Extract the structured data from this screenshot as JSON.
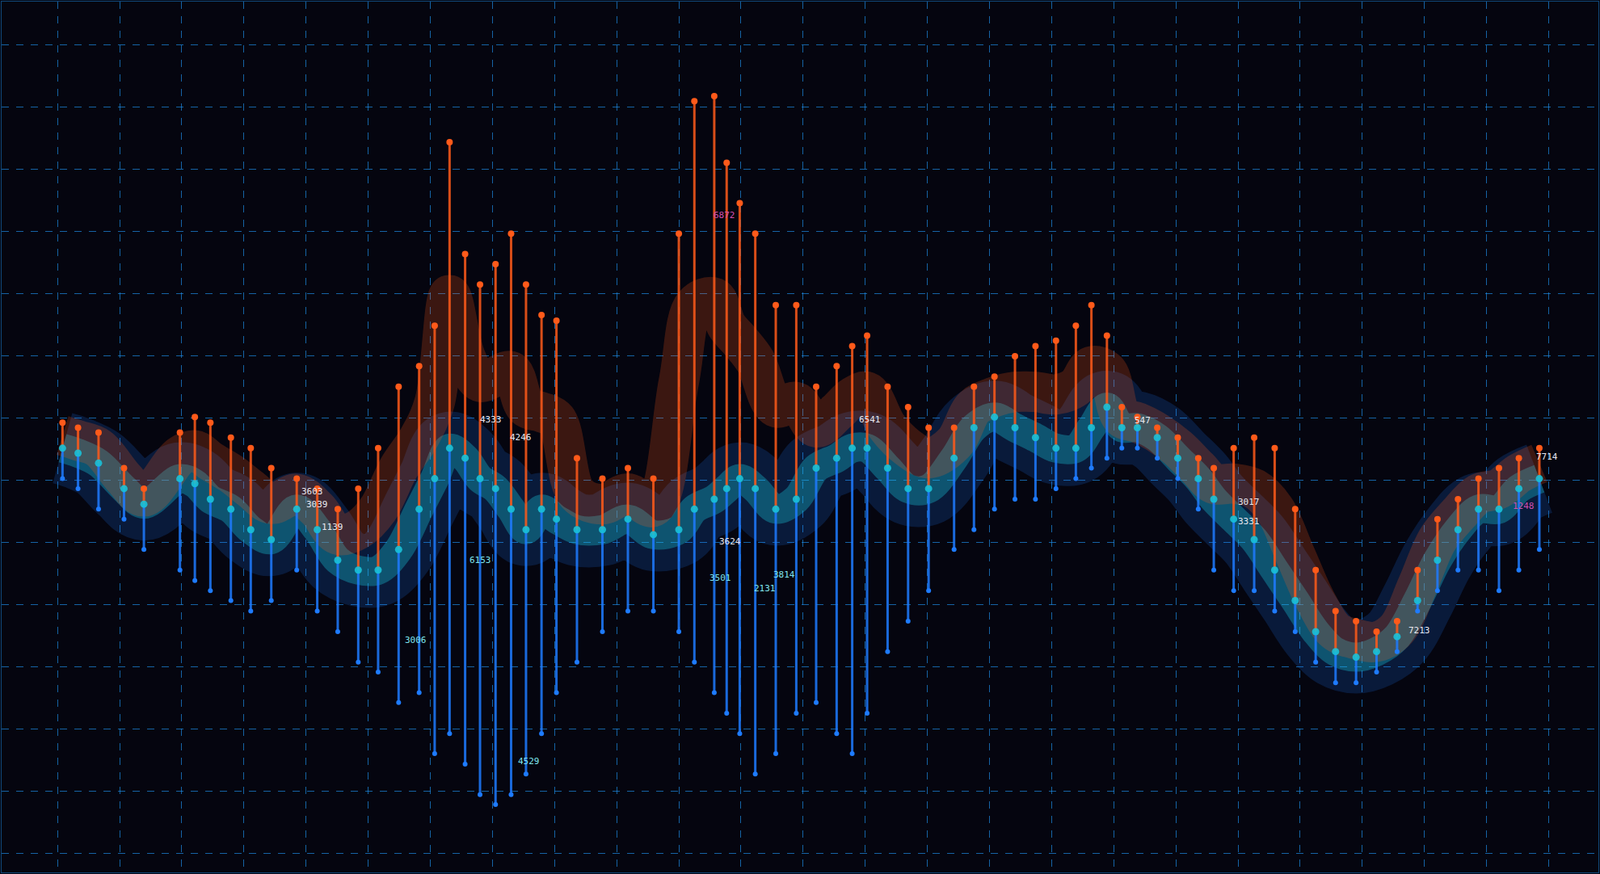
{
  "chart_data": {
    "type": "range",
    "grid": true,
    "tick_labels": false,
    "marker": "circle",
    "xlim": [
      -0.9,
      24.8
    ],
    "ylim": [
      -0.3,
      13.7
    ],
    "xticks": [
      0,
      1,
      2,
      3,
      4,
      5,
      6,
      7,
      8,
      9,
      10,
      11,
      12,
      13,
      14,
      15,
      16,
      17,
      18,
      19,
      20,
      21,
      22,
      23,
      24
    ],
    "yticks": [
      0,
      1,
      2,
      3,
      4,
      5,
      6,
      7,
      8,
      9,
      10,
      11,
      12,
      13
    ],
    "x": [
      0.08,
      0.33,
      0.66,
      1.07,
      1.39,
      1.97,
      2.21,
      2.46,
      2.79,
      3.11,
      3.44,
      3.85,
      4.18,
      4.51,
      4.84,
      5.16,
      5.49,
      5.82,
      6.07,
      6.31,
      6.56,
      6.8,
      7.05,
      7.3,
      7.54,
      7.79,
      8.03,
      8.36,
      8.77,
      9.18,
      9.59,
      10.0,
      10.25,
      10.57,
      10.77,
      10.98,
      11.23,
      11.56,
      11.89,
      12.21,
      12.54,
      12.79,
      13.03,
      13.36,
      13.69,
      14.02,
      14.43,
      14.75,
      15.08,
      15.41,
      15.74,
      16.07,
      16.39,
      16.64,
      16.89,
      17.13,
      17.38,
      17.7,
      18.03,
      18.36,
      18.61,
      18.93,
      19.26,
      19.59,
      19.92,
      20.25,
      20.57,
      20.9,
      21.23,
      21.56,
      21.89,
      22.21,
      22.54,
      22.87,
      23.2,
      23.52,
      23.85
    ],
    "series": [
      {
        "color": "#ff5a1a",
        "values": [
          6.93,
          6.85,
          6.77,
          6.2,
          5.87,
          6.77,
          7.02,
          6.93,
          6.69,
          6.52,
          6.2,
          6.03,
          5.87,
          5.54,
          5.87,
          6.52,
          7.51,
          7.84,
          8.49,
          11.44,
          9.64,
          9.15,
          9.48,
          9.97,
          9.15,
          8.66,
          8.57,
          6.36,
          6.03,
          6.2,
          6.03,
          9.97,
          12.1,
          12.18,
          11.11,
          10.46,
          9.97,
          8.82,
          8.82,
          7.51,
          7.84,
          8.16,
          8.33,
          7.51,
          7.18,
          6.85,
          6.85,
          7.51,
          7.67,
          8.0,
          8.16,
          8.25,
          8.49,
          8.82,
          8.33,
          7.18,
          7.02,
          6.85,
          6.69,
          6.36,
          6.2,
          6.52,
          6.69,
          6.52,
          5.54,
          4.56,
          3.9,
          3.74,
          3.57,
          3.74,
          4.56,
          5.38,
          5.7,
          6.03,
          6.2,
          6.36,
          6.52
        ]
      },
      {
        "color": "#19c2d8",
        "values": [
          6.52,
          6.44,
          6.28,
          5.87,
          5.62,
          6.03,
          5.95,
          5.7,
          5.54,
          5.21,
          5.05,
          5.54,
          5.21,
          4.72,
          4.56,
          4.56,
          4.89,
          5.54,
          6.03,
          6.52,
          6.36,
          6.03,
          5.87,
          5.54,
          5.21,
          5.54,
          5.38,
          5.21,
          5.21,
          5.38,
          5.13,
          5.21,
          5.54,
          5.7,
          5.87,
          6.03,
          5.87,
          5.54,
          5.7,
          6.2,
          6.36,
          6.52,
          6.52,
          6.2,
          5.87,
          5.87,
          6.36,
          6.85,
          7.02,
          6.85,
          6.69,
          6.52,
          6.52,
          6.85,
          7.18,
          6.85,
          6.85,
          6.69,
          6.36,
          6.03,
          5.7,
          5.38,
          5.05,
          4.56,
          4.07,
          3.57,
          3.25,
          3.16,
          3.25,
          3.49,
          4.07,
          4.72,
          5.21,
          5.54,
          5.54,
          5.87,
          6.03
        ]
      },
      {
        "color": "#1e7bff",
        "values": [
          6.03,
          5.87,
          5.54,
          5.38,
          4.89,
          4.56,
          4.39,
          4.23,
          4.07,
          3.9,
          4.07,
          4.56,
          3.9,
          3.57,
          3.08,
          2.92,
          2.43,
          2.59,
          1.61,
          1.93,
          1.44,
          0.95,
          0.79,
          0.95,
          1.28,
          1.93,
          2.59,
          3.08,
          3.57,
          3.9,
          3.9,
          3.57,
          3.08,
          2.59,
          2.26,
          1.93,
          1.28,
          1.61,
          2.26,
          2.43,
          1.93,
          1.61,
          2.26,
          3.25,
          3.74,
          4.23,
          4.89,
          5.21,
          5.54,
          5.7,
          5.7,
          5.87,
          6.03,
          6.2,
          6.36,
          6.52,
          6.52,
          6.36,
          6.03,
          5.54,
          4.56,
          4.23,
          4.23,
          3.9,
          3.57,
          3.08,
          2.75,
          2.75,
          2.92,
          3.25,
          3.9,
          4.23,
          4.56,
          4.56,
          4.23,
          4.56,
          4.89
        ]
      }
    ],
    "annotations": [
      {
        "text": "4333",
        "x": 6.97,
        "y": 6.98,
        "color": "#e8e8f0"
      },
      {
        "text": "4246",
        "x": 7.46,
        "y": 6.69,
        "color": "#e8e8f0"
      },
      {
        "text": "3603",
        "x": 4.1,
        "y": 5.82,
        "color": "#e8e8f0"
      },
      {
        "text": "3039",
        "x": 4.18,
        "y": 5.62,
        "color": "#e8e8f0"
      },
      {
        "text": "1139",
        "x": 4.43,
        "y": 5.25,
        "color": "#e8e8f0"
      },
      {
        "text": "6872",
        "x": 10.74,
        "y": 10.26,
        "color": "#d24fb0"
      },
      {
        "text": "3624",
        "x": 10.82,
        "y": 5.02,
        "color": "#e8e8f0"
      },
      {
        "text": "3814",
        "x": 11.69,
        "y": 4.49,
        "color": "#7fe6f0"
      },
      {
        "text": "3501",
        "x": 10.67,
        "y": 4.43,
        "color": "#7fe6f0"
      },
      {
        "text": "2131",
        "x": 11.39,
        "y": 4.26,
        "color": "#7fe6f0"
      },
      {
        "text": "6153",
        "x": 6.8,
        "y": 4.72,
        "color": "#7fe6f0"
      },
      {
        "text": "3006",
        "x": 5.77,
        "y": 3.44,
        "color": "#7fe6f0"
      },
      {
        "text": "4529",
        "x": 7.59,
        "y": 1.48,
        "color": "#7fe6f0"
      },
      {
        "text": "6541",
        "x": 13.07,
        "y": 6.98,
        "color": "#e8e8f0"
      },
      {
        "text": "547",
        "x": 17.46,
        "y": 6.97,
        "color": "#e8e8f0"
      },
      {
        "text": "3017",
        "x": 19.18,
        "y": 5.66,
        "color": "#e8e8f0"
      },
      {
        "text": "3331",
        "x": 19.18,
        "y": 5.34,
        "color": "#e8e8f0"
      },
      {
        "text": "7213",
        "x": 21.92,
        "y": 3.59,
        "color": "#e8e8f0"
      },
      {
        "text": "7714",
        "x": 23.98,
        "y": 6.38,
        "color": "#e8e8f0"
      },
      {
        "text": "1248",
        "x": 23.6,
        "y": 5.59,
        "color": "#d24fb0"
      }
    ]
  }
}
